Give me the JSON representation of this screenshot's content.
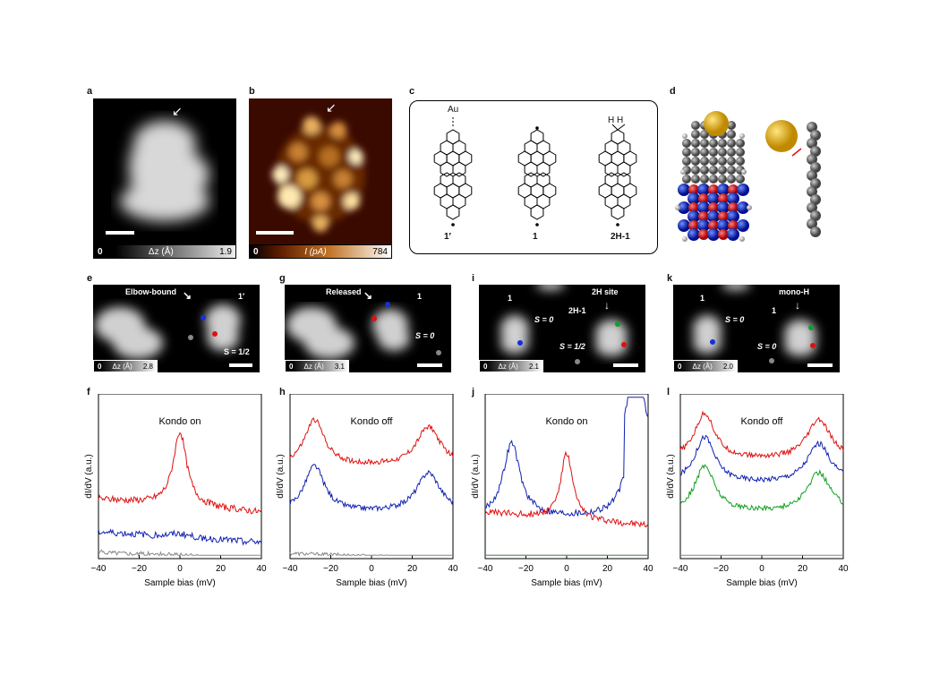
{
  "panels": {
    "a": {
      "label": "a",
      "cbar_min": "0",
      "cbar_name": "Δz (Å)",
      "cbar_max": "1.9"
    },
    "b": {
      "label": "b",
      "cbar_min": "0",
      "cbar_name": "I (pA)",
      "cbar_max": "784"
    },
    "c": {
      "label": "c",
      "au": "Au",
      "hh": "H H",
      "mol1": "1′",
      "mol2": "1",
      "mol3": "2H-1"
    },
    "d": {
      "label": "d"
    },
    "e": {
      "label": "e",
      "title": "Elbow-bound",
      "mol": "1′",
      "spin": "S = 1/2",
      "cbar_min": "0",
      "cbar_name": "Δz (Å)",
      "cbar_max": "2.8"
    },
    "g": {
      "label": "g",
      "title": "Released",
      "mol": "1",
      "spin": "S = 0",
      "cbar_min": "0",
      "cbar_name": "Δz (Å)",
      "cbar_max": "3.1"
    },
    "i": {
      "label": "i",
      "title": "2H site",
      "mol_left": "1",
      "mol_right": "2H-1",
      "spin_left": "S = 0",
      "spin_right": "S = 1/2",
      "cbar_min": "0",
      "cbar_name": "Δz (Å)",
      "cbar_max": "2.1"
    },
    "k": {
      "label": "k",
      "title": "mono-H",
      "mol_left": "1",
      "mol_right": "1",
      "spin_left": "S = 0",
      "spin_right": "S = 0",
      "cbar_min": "0",
      "cbar_name": "Δz (Å)",
      "cbar_max": "2.0"
    }
  },
  "chart_data": [
    {
      "id": "f",
      "type": "line",
      "title": "Kondo on",
      "xlabel": "Sample bias (mV)",
      "ylabel": "dI/dV (a.u.)",
      "xlim": [
        -40,
        40
      ],
      "xticks": [
        "−40",
        "−20",
        "0",
        "20",
        "40"
      ],
      "series": [
        {
          "color": "#e01010",
          "kind": "kondo"
        },
        {
          "color": "#1020b0",
          "kind": "flat_bump"
        },
        {
          "color": "#888888",
          "kind": "flat"
        }
      ]
    },
    {
      "id": "h",
      "type": "line",
      "title": "Kondo off",
      "xlabel": "Sample bias (mV)",
      "ylabel": "dI/dV (a.u.)",
      "xlim": [
        -40,
        40
      ],
      "xticks": [
        "−40",
        "−20",
        "0",
        "20",
        "40"
      ],
      "series": [
        {
          "color": "#e01010",
          "kind": "gap"
        },
        {
          "color": "#1020b0",
          "kind": "gap"
        },
        {
          "color": "#888888",
          "kind": "flat"
        }
      ]
    },
    {
      "id": "j",
      "type": "line",
      "title": "Kondo on",
      "xlabel": "Sample bias (mV)",
      "ylabel": "dI/dV (a.u.)",
      "xlim": [
        -40,
        40
      ],
      "xticks": [
        "−40",
        "−20",
        "0",
        "20",
        "40"
      ],
      "series": [
        {
          "color": "#1020b0",
          "kind": "gap_big"
        },
        {
          "color": "#e01010",
          "kind": "kondo_small"
        },
        {
          "color": "#10a020",
          "kind": "flat"
        },
        {
          "color": "#888888",
          "kind": "flat"
        }
      ]
    },
    {
      "id": "l",
      "type": "line",
      "title": "Kondo off",
      "xlabel": "Sample bias (mV)",
      "ylabel": "dI/dV (a.u.)",
      "xlim": [
        -40,
        40
      ],
      "xticks": [
        "−40",
        "−20",
        "0",
        "20",
        "40"
      ],
      "series": [
        {
          "color": "#e01010",
          "kind": "gap"
        },
        {
          "color": "#1020b0",
          "kind": "gap"
        },
        {
          "color": "#10a020",
          "kind": "gap"
        },
        {
          "color": "#888888",
          "kind": "flat"
        }
      ]
    }
  ]
}
